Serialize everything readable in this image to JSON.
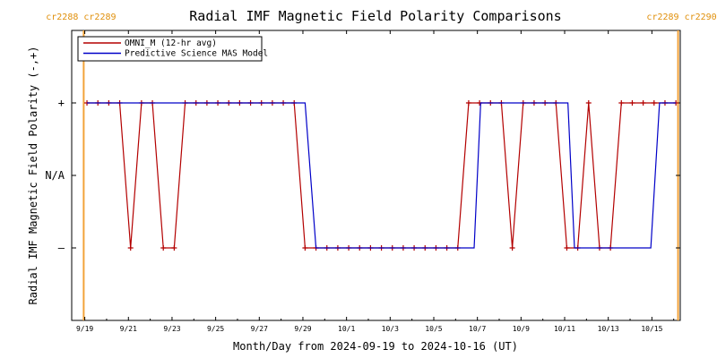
{
  "chart_data": {
    "type": "line",
    "title": "Radial IMF Magnetic Field Polarity Comparisons",
    "xlabel": "Month/Day from 2024-09-19 to 2024-10-16 (UT)",
    "ylabel": "Radial IMF Magnetic Field Polarity (-,+)",
    "x_units": "days since 2024-09-19 00:00 UT",
    "xlim": [
      -0.6,
      27.3
    ],
    "x_ticks": [
      {
        "day": 0,
        "label": "9/19"
      },
      {
        "day": 2,
        "label": "9/21"
      },
      {
        "day": 4,
        "label": "9/23"
      },
      {
        "day": 6,
        "label": "9/25"
      },
      {
        "day": 8,
        "label": "9/27"
      },
      {
        "day": 10,
        "label": "9/29"
      },
      {
        "day": 12,
        "label": "10/1"
      },
      {
        "day": 14,
        "label": "10/3"
      },
      {
        "day": 16,
        "label": "10/5"
      },
      {
        "day": 18,
        "label": "10/7"
      },
      {
        "day": 20,
        "label": "10/9"
      },
      {
        "day": 22,
        "label": "10/11"
      },
      {
        "day": 24,
        "label": "10/13"
      },
      {
        "day": 26,
        "label": "10/15"
      }
    ],
    "ylim": [
      -2,
      2
    ],
    "y_ticks": [
      {
        "value": 1,
        "label": "+"
      },
      {
        "value": 0,
        "label": "N/A"
      },
      {
        "value": -1,
        "label": "–"
      }
    ],
    "series": [
      {
        "name": "OMNI_M (12-hr avg)",
        "color": "#b30000",
        "markers": true,
        "x": [
          0.1,
          0.6,
          1.1,
          1.6,
          2.1,
          2.6,
          3.1,
          3.6,
          4.1,
          4.6,
          5.1,
          5.6,
          6.1,
          6.6,
          7.1,
          7.6,
          8.1,
          8.6,
          9.1,
          9.6,
          10.1,
          10.6,
          11.1,
          11.6,
          12.1,
          12.6,
          13.1,
          13.6,
          14.1,
          14.6,
          15.1,
          15.6,
          16.1,
          16.6,
          17.1,
          17.6,
          18.1,
          18.6,
          19.1,
          19.6,
          20.1,
          20.6,
          21.1,
          21.6,
          22.1,
          22.6,
          23.1,
          23.6,
          24.1,
          24.6,
          25.1,
          25.6,
          26.1,
          26.6,
          27.1
        ],
        "y": [
          1,
          1,
          1,
          1,
          -1,
          1,
          1,
          -1,
          -1,
          1,
          1,
          1,
          1,
          1,
          1,
          1,
          1,
          1,
          1,
          1,
          -1,
          -1,
          -1,
          -1,
          -1,
          -1,
          -1,
          -1,
          -1,
          -1,
          -1,
          -1,
          -1,
          -1,
          -1,
          1,
          1,
          1,
          1,
          -1,
          1,
          1,
          1,
          1,
          -1,
          -1,
          1,
          -1,
          -1,
          1,
          1,
          1,
          1,
          1,
          1
        ]
      },
      {
        "name": "Predictive Science MAS Model",
        "color": "#0000c8",
        "markers": false,
        "x": [
          0.1,
          10.1,
          10.6,
          17.85,
          18.15,
          22.15,
          22.45,
          25.95,
          26.35,
          27.1
        ],
        "y": [
          1,
          1,
          -1,
          -1,
          1,
          1,
          -1,
          -1,
          1,
          1
        ]
      }
    ],
    "cr_boundaries": [
      {
        "day": -0.05,
        "label": "cr2288 cr2289",
        "side": "left"
      },
      {
        "day": 27.2,
        "label": "cr2289 cr2290",
        "side": "right"
      }
    ],
    "cr_color": "#f2a33a",
    "legend_position": "top-left",
    "grid": false
  }
}
